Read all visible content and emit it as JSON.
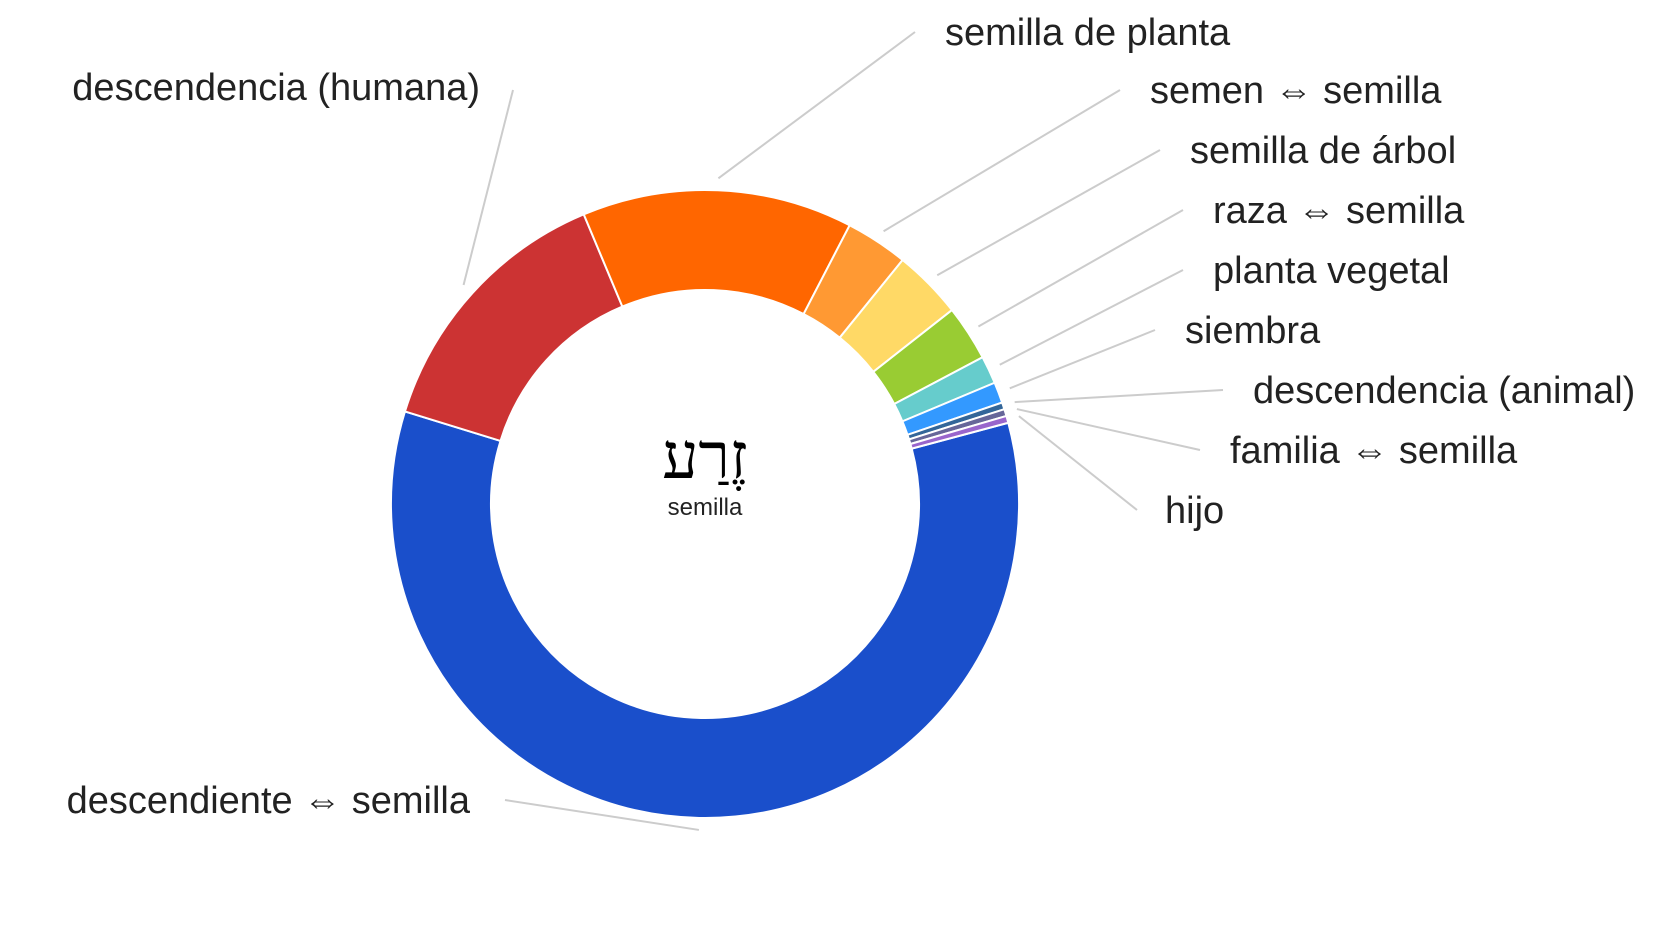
{
  "chart_data": {
    "type": "pie",
    "variant": "donut",
    "center_text": "זֶרַע",
    "center_subtext": "semilla",
    "colors": [
      "#1a4fcb",
      "#cc3333",
      "#ff6600",
      "#ff9933",
      "#ffd966",
      "#99cc33",
      "#66cccc",
      "#3399ff",
      "#336699",
      "#666699",
      "#9966cc"
    ],
    "slices": [
      {
        "label": "descendiente ⇔ semilla",
        "value": 165
      },
      {
        "label": "descendencia (humana)",
        "value": 39
      },
      {
        "label": "semilla de planta",
        "value": 39
      },
      {
        "label": "semen ⇔ semilla",
        "value": 9
      },
      {
        "label": "semilla de árbol",
        "value": 10
      },
      {
        "label": "raza ⇔ semilla",
        "value": 8
      },
      {
        "label": "planta vegetal",
        "value": 4
      },
      {
        "label": "siembra",
        "value": 3
      },
      {
        "label": "descendencia (animal)",
        "value": 1
      },
      {
        "label": "familia ⇔ semilla",
        "value": 1
      },
      {
        "label": "hijo",
        "value": 1
      }
    ]
  }
}
